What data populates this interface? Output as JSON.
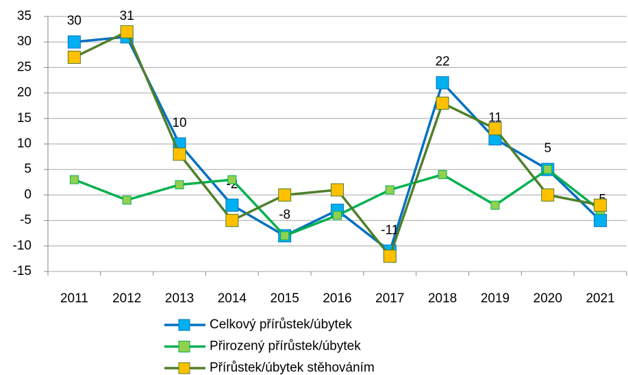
{
  "chart_data": {
    "type": "line",
    "categories": [
      "2011",
      "2012",
      "2013",
      "2014",
      "2015",
      "2016",
      "2017",
      "2018",
      "2019",
      "2020",
      "2021"
    ],
    "series": [
      {
        "name": "Celkový přírůstek/úbytek",
        "color": "#0070c0",
        "marker_color": "#00b0f0",
        "data_labels": true,
        "values": [
          30,
          31,
          10,
          -2,
          -8,
          -3,
          -11,
          22,
          11,
          5,
          -5
        ]
      },
      {
        "name": "Přirozený přírůstek/úbytek",
        "color": "#00b050",
        "marker_color": "#92d050",
        "data_labels": false,
        "values": [
          3,
          -1,
          2,
          3,
          -8,
          -4,
          1,
          4,
          -2,
          5,
          -3
        ]
      },
      {
        "name": "Přírůstek/úbytek stěhováním",
        "color": "#4f7f2a",
        "marker_color": "#ffc000",
        "data_labels": false,
        "values": [
          27,
          32,
          8,
          -5,
          0,
          1,
          -12,
          18,
          13,
          0,
          -2
        ]
      }
    ],
    "ylim": [
      -15,
      35
    ],
    "yticks": [
      -15,
      -10,
      -5,
      0,
      5,
      10,
      15,
      20,
      25,
      30,
      35
    ],
    "grid": true,
    "legend": "bottom"
  }
}
